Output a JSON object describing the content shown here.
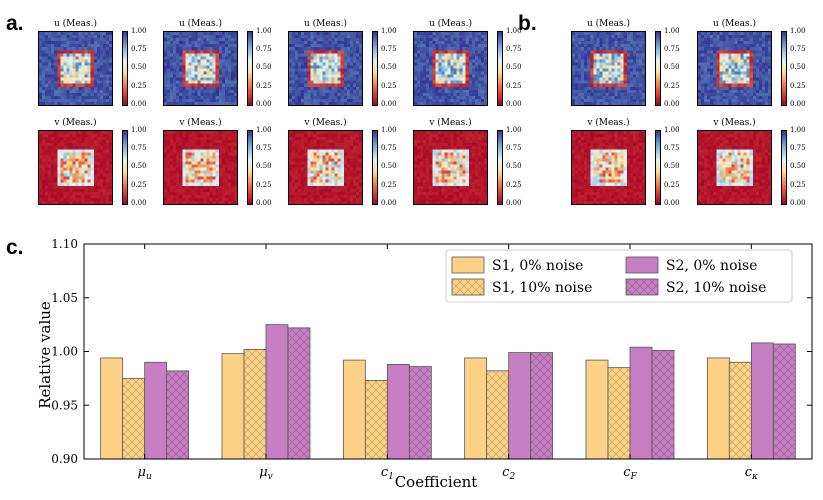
{
  "panels": {
    "a_label": "a.",
    "b_label": "b.",
    "c_label": "c."
  },
  "heatmaps": {
    "colorbar_ticks": [
      "1.00",
      "0.75",
      "0.50",
      "0.25",
      "0.00"
    ],
    "panel_a": [
      {
        "title": "u (Meas.)"
      },
      {
        "title": "u (Meas.)"
      },
      {
        "title": "u (Meas.)"
      },
      {
        "title": "u (Meas.)"
      },
      {
        "title": "v (Meas.)"
      },
      {
        "title": "v (Meas.)"
      },
      {
        "title": "v (Meas.)"
      },
      {
        "title": "v (Meas.)"
      }
    ],
    "panel_b": [
      {
        "title": "u (Meas.)"
      },
      {
        "title": "u (Meas.)"
      },
      {
        "title": "v (Meas.)"
      },
      {
        "title": "v (Meas.)"
      }
    ],
    "colors": {
      "low": "#a50026",
      "mid": "#fee090",
      "high": "#313695"
    }
  },
  "chart_data": {
    "type": "bar",
    "xlabel": "Coefficient",
    "ylabel": "Relative value",
    "categories": [
      "μu",
      "μv",
      "c1",
      "c2",
      "cF",
      "cκ"
    ],
    "ylim": [
      0.9,
      1.1
    ],
    "yticks": [
      "0.90",
      "0.95",
      "1.00",
      "1.05",
      "1.10"
    ],
    "legend_position": "top-right",
    "series": [
      {
        "name": "S1, 0% noise",
        "color": "#fdd286",
        "hatch": false,
        "values": [
          0.994,
          0.998,
          0.992,
          0.994,
          0.992,
          0.994
        ]
      },
      {
        "name": "S1, 10% noise",
        "color": "#fdd286",
        "hatch": true,
        "values": [
          0.975,
          1.002,
          0.973,
          0.982,
          0.985,
          0.99
        ]
      },
      {
        "name": "S2, 0% noise",
        "color": "#c77fc4",
        "hatch": false,
        "values": [
          0.99,
          1.025,
          0.988,
          0.999,
          1.004,
          1.008
        ]
      },
      {
        "name": "S2, 10% noise",
        "color": "#c77fc4",
        "hatch": true,
        "values": [
          0.982,
          1.022,
          0.986,
          0.999,
          1.001,
          1.007
        ]
      }
    ]
  }
}
